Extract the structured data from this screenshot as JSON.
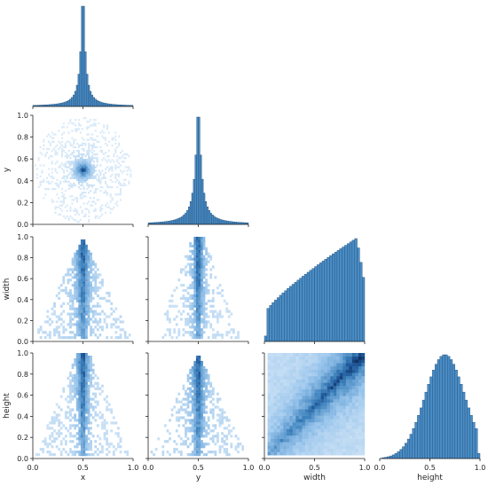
{
  "chart_data": {
    "type": "pairplot",
    "kind": "histogram",
    "corner": true,
    "variables": [
      "x",
      "y",
      "width",
      "height"
    ],
    "axis_labels": {
      "x": "x",
      "y": "y",
      "width": "width",
      "height": "height"
    },
    "xlim": [
      0.0,
      1.0
    ],
    "ylim": [
      0.0,
      1.0
    ],
    "ticks": [
      0.0,
      0.2,
      0.4,
      0.6,
      0.8,
      1.0
    ],
    "ticks_x": [
      0.0,
      0.5,
      1.0
    ],
    "tick_labels_y": [
      "0.0",
      "0.2",
      "0.4",
      "0.6",
      "0.8",
      "1.0"
    ],
    "tick_labels_x": [
      "0.0",
      "0.5",
      "1.0"
    ],
    "colors": {
      "hist": "#3f83bd",
      "heat_dark": "#0e3a66",
      "heat_light": "#cfe3f5",
      "axis": "#222222"
    },
    "diagonal_histograms": {
      "x": {
        "shape": "peaked",
        "peak_at": 0.5,
        "description_values": [
          0.0,
          0.002,
          0.004,
          0.006,
          0.01,
          0.015,
          0.022,
          0.035,
          0.06,
          0.12,
          0.35,
          1.0,
          0.35,
          0.12,
          0.06,
          0.035,
          0.022,
          0.015,
          0.01,
          0.006,
          0.004,
          0.002
        ]
      },
      "y": {
        "shape": "peaked",
        "peak_at": 0.5
      },
      "width": {
        "shape": "rising",
        "peak_at": 0.8
      },
      "height": {
        "shape": "hump",
        "peak_at": 0.65
      }
    },
    "pairs": [
      {
        "xvar": "x",
        "yvar": "y",
        "pattern": "radial-blob",
        "center": [
          0.5,
          0.5
        ]
      },
      {
        "xvar": "x",
        "yvar": "width",
        "pattern": "triangle",
        "apex": [
          0.5,
          1.0
        ]
      },
      {
        "xvar": "y",
        "yvar": "width",
        "pattern": "triangle-narrow",
        "apex": [
          0.5,
          1.0
        ]
      },
      {
        "xvar": "x",
        "yvar": "height",
        "pattern": "triangle-narrow",
        "apex": [
          0.5,
          1.0
        ]
      },
      {
        "xvar": "y",
        "yvar": "height",
        "pattern": "triangle",
        "apex": [
          0.5,
          1.0
        ]
      },
      {
        "xvar": "width",
        "yvar": "height",
        "pattern": "diagonal"
      }
    ]
  }
}
